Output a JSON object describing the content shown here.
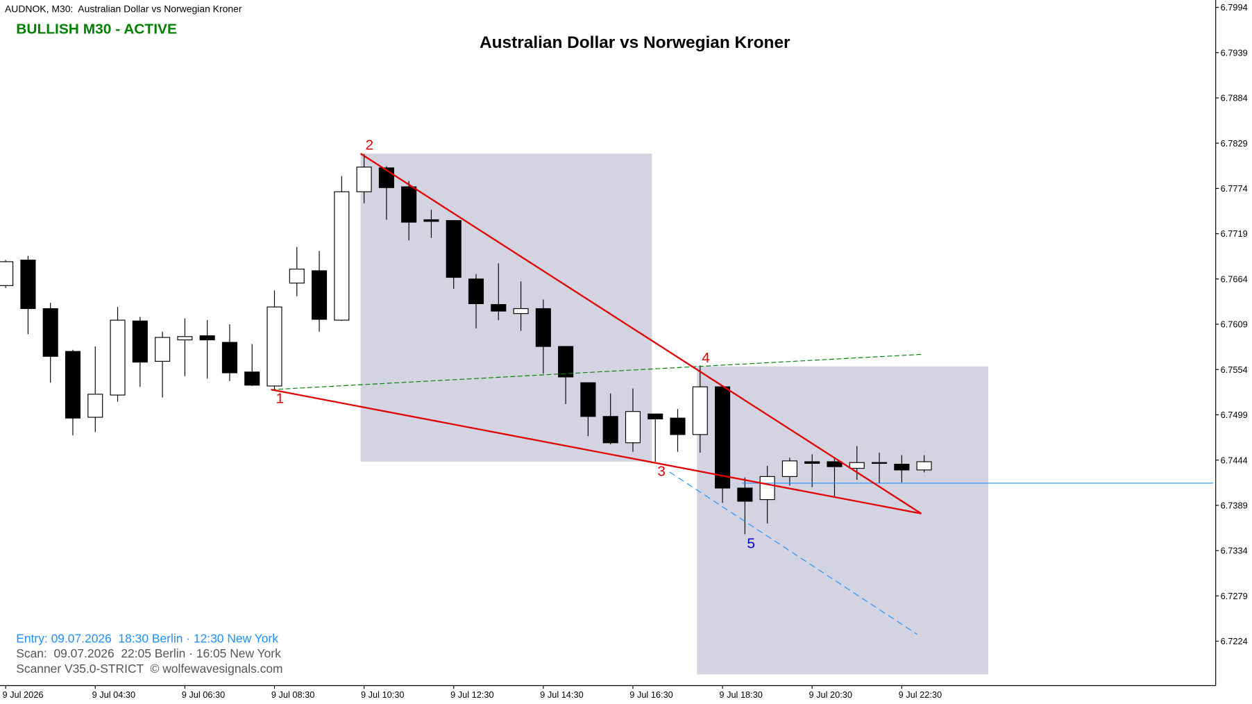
{
  "chart_data": {
    "type": "candlestick",
    "header": "AUDNOK, M30:  Australian Dollar vs Norwegian Kroner",
    "status": "BULLISH M30 - ACTIVE",
    "title": "Australian Dollar vs Norwegian Kroner",
    "info": [
      "Entry: 09.07.2026  18:30 Berlin · 12:30 New York",
      "Scan:  09.07.2026  22:05 Berlin · 16:05 New York",
      "Scanner V35.0-STRICT  © wolfewavesignals.com"
    ],
    "wave_labels": [
      "1",
      "2",
      "3",
      "4",
      "5"
    ],
    "categories": [
      "9 Jul 2026",
      null,
      null,
      null,
      "9 Jul 04:30",
      null,
      null,
      null,
      "9 Jul 06:30",
      null,
      null,
      null,
      "9 Jul 08:30",
      null,
      null,
      null,
      "9 Jul 10:30",
      null,
      null,
      null,
      "9 Jul 12:30",
      null,
      null,
      null,
      "9 Jul 14:30",
      null,
      null,
      null,
      "9 Jul 16:30",
      null,
      null,
      null,
      "9 Jul 18:30",
      null,
      null,
      null,
      "9 Jul 20:30",
      null,
      null,
      null,
      "9 Jul 22:30",
      null
    ],
    "open": [
      6.7656,
      6.7687,
      6.7628,
      6.7576,
      6.7496,
      6.7523,
      6.7613,
      6.7564,
      6.759,
      6.7595,
      6.7587,
      6.7551,
      6.7534,
      6.7659,
      6.7674,
      6.7614,
      6.777,
      6.7799,
      6.7776,
      6.7736,
      6.7735,
      6.7664,
      6.7633,
      6.7622,
      6.7628,
      6.7582,
      6.7538,
      6.7497,
      6.7465,
      6.75,
      6.7495,
      6.7475,
      6.7533,
      6.741,
      6.7396,
      6.7424,
      6.7442,
      6.7442,
      6.7434,
      6.744,
      6.7439,
      6.7432
    ],
    "high": [
      6.7687,
      6.7692,
      6.7635,
      6.7578,
      6.7582,
      6.763,
      6.7618,
      6.76,
      6.7616,
      6.7614,
      6.7609,
      6.7585,
      6.765,
      6.7703,
      6.7698,
      6.7789,
      6.7816,
      6.7801,
      6.7783,
      6.7748,
      6.7735,
      6.767,
      6.7683,
      6.7661,
      6.7639,
      6.7582,
      6.7538,
      6.7525,
      6.7531,
      6.75,
      6.7506,
      6.7559,
      6.7535,
      6.7423,
      6.7437,
      6.7447,
      6.7451,
      6.7446,
      6.7461,
      6.7453,
      6.745,
      6.745
    ],
    "low": [
      6.7653,
      6.7597,
      6.7538,
      6.7474,
      6.7478,
      6.7515,
      6.7533,
      6.752,
      6.7546,
      6.7543,
      6.754,
      6.7534,
      6.7529,
      6.7643,
      6.76,
      6.7613,
      6.7756,
      6.7736,
      6.7711,
      6.7714,
      6.7652,
      6.7604,
      6.7614,
      6.7601,
      6.7549,
      6.7512,
      6.7473,
      6.7463,
      6.7454,
      6.7442,
      6.7454,
      6.7453,
      6.7392,
      6.7354,
      6.7367,
      6.7413,
      6.7411,
      6.74,
      6.742,
      6.7416,
      6.7417,
      6.7429
    ],
    "close": [
      6.7685,
      6.7628,
      6.757,
      6.7495,
      6.7524,
      6.7614,
      6.7563,
      6.7593,
      6.7594,
      6.759,
      6.755,
      6.7535,
      6.763,
      6.7676,
      6.7615,
      6.777,
      6.78,
      6.7775,
      6.7733,
      6.7734,
      6.7666,
      6.7634,
      6.7625,
      6.7628,
      6.7582,
      6.7545,
      6.7497,
      6.7465,
      6.7503,
      6.7494,
      6.7475,
      6.7533,
      6.741,
      6.7394,
      6.7424,
      6.7443,
      6.744,
      6.7436,
      6.7441,
      6.7441,
      6.7432,
      6.7442
    ],
    "up_color": "#ffffff",
    "down_color": "#000000",
    "ylim": [
      6.717,
      6.8001
    ],
    "yticks": [
      6.7994,
      6.7939,
      6.7884,
      6.7829,
      6.7774,
      6.7719,
      6.7664,
      6.7609,
      6.7554,
      6.7499,
      6.7444,
      6.7389,
      6.7334,
      6.7279,
      6.7224
    ]
  }
}
